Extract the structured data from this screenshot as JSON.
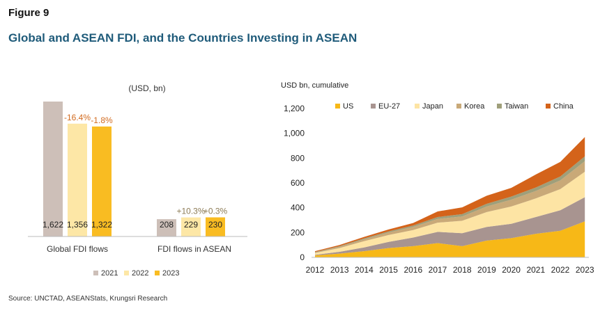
{
  "figure_label": "Figure 9",
  "title": "Global and ASEAN FDI, and the Countries Investing in ASEAN",
  "source": "Source: UNCTAD, ASEANStats, Krungsri Research",
  "chart_data": [
    {
      "type": "bar",
      "unit_label": "(USD, bn)",
      "categories": [
        "Global FDI flows",
        "FDI flows in ASEAN"
      ],
      "series": [
        {
          "name": "2021",
          "color": "#cdbfb8",
          "values": [
            1622,
            208
          ],
          "labels": [
            "1,622",
            "208"
          ]
        },
        {
          "name": "2022",
          "color": "#fde7a6",
          "values": [
            1356,
            229
          ],
          "labels": [
            "1,356",
            "229"
          ]
        },
        {
          "name": "2023",
          "color": "#f9bc22",
          "values": [
            1322,
            230
          ],
          "labels": [
            "1,322",
            "230"
          ]
        }
      ],
      "annotations": [
        {
          "category": 0,
          "series": 1,
          "text": "-16.4%",
          "color": "#d26b1f"
        },
        {
          "category": 0,
          "series": 2,
          "text": "-1.8%",
          "color": "#d26b1f"
        },
        {
          "category": 1,
          "series": 1,
          "text": "+10.3%",
          "color": "#8c7b55"
        },
        {
          "category": 1,
          "series": 2,
          "text": "+0.3%",
          "color": "#8c7b55"
        }
      ],
      "legend": [
        "2021",
        "2022",
        "2023"
      ],
      "legend_position": "bottom"
    },
    {
      "type": "area",
      "stacked": true,
      "ylabel": "USD bn, cumulative",
      "x": [
        2012,
        2013,
        2014,
        2015,
        2016,
        2017,
        2018,
        2019,
        2020,
        2021,
        2022,
        2023
      ],
      "ylim": [
        0,
        1200
      ],
      "yticks": [
        0,
        200,
        400,
        600,
        800,
        1000,
        1200
      ],
      "ytick_labels": [
        "0",
        "200",
        "400",
        "600",
        "800",
        "1,000",
        "1,200"
      ],
      "legend_position": "top",
      "series": [
        {
          "name": "US",
          "color": "#f7b817",
          "values": [
            15,
            30,
            50,
            75,
            90,
            115,
            90,
            135,
            155,
            190,
            215,
            290
          ]
        },
        {
          "name": "EU-27",
          "color": "#a89490",
          "values": [
            5,
            15,
            30,
            50,
            70,
            90,
            105,
            110,
            115,
            135,
            165,
            195
          ]
        },
        {
          "name": "Japan",
          "color": "#fde4a4",
          "values": [
            15,
            30,
            50,
            55,
            60,
            75,
            100,
            120,
            140,
            150,
            170,
            205
          ]
        },
        {
          "name": "Korea",
          "color": "#c9a978",
          "values": [
            5,
            10,
            15,
            20,
            25,
            30,
            35,
            45,
            55,
            60,
            70,
            85
          ]
        },
        {
          "name": "Taiwan",
          "color": "#9f9f7a",
          "values": [
            3,
            5,
            8,
            10,
            12,
            15,
            18,
            22,
            25,
            28,
            32,
            40
          ]
        },
        {
          "name": "China",
          "color": "#d4631a",
          "values": [
            7,
            10,
            12,
            15,
            20,
            45,
            55,
            65,
            70,
            105,
            118,
            155
          ]
        }
      ]
    }
  ]
}
